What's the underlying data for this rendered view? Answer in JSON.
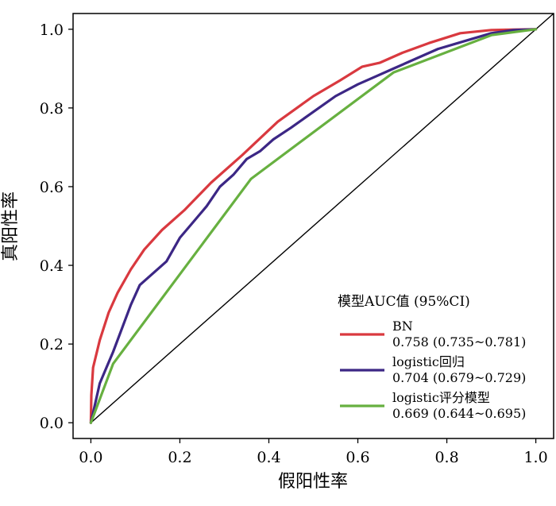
{
  "chart_data": {
    "type": "line",
    "title": "",
    "xlabel": "假阳性率",
    "ylabel": "真阳性率",
    "xlim": [
      -0.04,
      1.04
    ],
    "ylim": [
      -0.04,
      1.04
    ],
    "xticks": [
      "0.0",
      "0.2",
      "0.4",
      "0.6",
      "0.8",
      "1.0"
    ],
    "yticks": [
      "0.0",
      "0.2",
      "0.4",
      "0.6",
      "0.8",
      "1.0"
    ],
    "grid": false,
    "legend": {
      "title": "模型AUC值 (95%CI)",
      "position": "bottom-right"
    },
    "series": [
      {
        "name": "BN",
        "auc": "0.758 (0.735~0.781)",
        "color": "#d9393f",
        "points": [
          [
            0,
            0
          ],
          [
            0.001,
            0.07
          ],
          [
            0.005,
            0.14
          ],
          [
            0.02,
            0.21
          ],
          [
            0.04,
            0.28
          ],
          [
            0.06,
            0.33
          ],
          [
            0.09,
            0.39
          ],
          [
            0.12,
            0.44
          ],
          [
            0.16,
            0.49
          ],
          [
            0.21,
            0.54
          ],
          [
            0.27,
            0.61
          ],
          [
            0.34,
            0.68
          ],
          [
            0.42,
            0.765
          ],
          [
            0.5,
            0.83
          ],
          [
            0.56,
            0.87
          ],
          [
            0.61,
            0.905
          ],
          [
            0.65,
            0.915
          ],
          [
            0.7,
            0.94
          ],
          [
            0.76,
            0.965
          ],
          [
            0.83,
            0.99
          ],
          [
            0.9,
            0.998
          ],
          [
            1,
            1
          ]
        ]
      },
      {
        "name": "logistic回归",
        "auc": "0.704 (0.679~0.729)",
        "color": "#3c2785",
        "points": [
          [
            0,
            0
          ],
          [
            0.01,
            0.05
          ],
          [
            0.02,
            0.1
          ],
          [
            0.035,
            0.14
          ],
          [
            0.05,
            0.18
          ],
          [
            0.07,
            0.24
          ],
          [
            0.09,
            0.3
          ],
          [
            0.11,
            0.35
          ],
          [
            0.14,
            0.38
          ],
          [
            0.17,
            0.41
          ],
          [
            0.2,
            0.47
          ],
          [
            0.23,
            0.51
          ],
          [
            0.26,
            0.55
          ],
          [
            0.29,
            0.6
          ],
          [
            0.32,
            0.63
          ],
          [
            0.35,
            0.67
          ],
          [
            0.38,
            0.69
          ],
          [
            0.41,
            0.72
          ],
          [
            0.45,
            0.75
          ],
          [
            0.5,
            0.79
          ],
          [
            0.55,
            0.83
          ],
          [
            0.6,
            0.86
          ],
          [
            0.64,
            0.88
          ],
          [
            0.68,
            0.9
          ],
          [
            0.73,
            0.925
          ],
          [
            0.78,
            0.95
          ],
          [
            0.84,
            0.97
          ],
          [
            0.9,
            0.99
          ],
          [
            0.95,
            0.998
          ],
          [
            1,
            1
          ]
        ]
      },
      {
        "name": "logistic评分模型",
        "auc": "0.669 (0.644~0.695)",
        "color": "#67b040",
        "points": [
          [
            0,
            0
          ],
          [
            0.05,
            0.15
          ],
          [
            0.36,
            0.62
          ],
          [
            0.68,
            0.89
          ],
          [
            0.9,
            0.985
          ],
          [
            1,
            1
          ]
        ]
      }
    ],
    "reference_line": [
      [
        0,
        0
      ],
      [
        1.04,
        1.04
      ]
    ],
    "reference_color": "#000000"
  }
}
